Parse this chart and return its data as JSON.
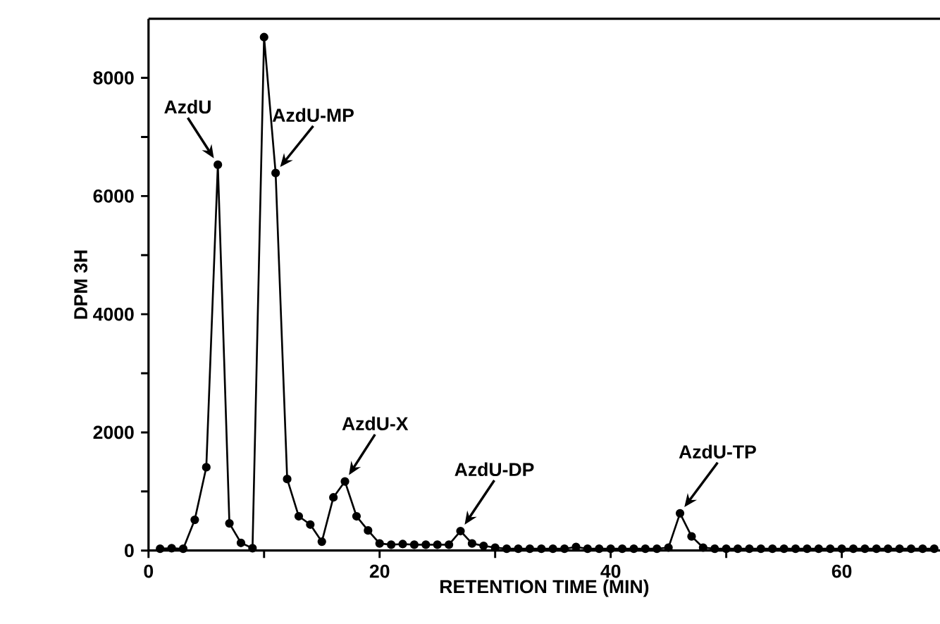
{
  "chart_data": {
    "type": "line",
    "xlabel": "RETENTION TIME (MIN)",
    "ylabel": "DPM 3H",
    "x": [
      1,
      2,
      3,
      4,
      5,
      6,
      7,
      8,
      9,
      10,
      11,
      12,
      13,
      14,
      15,
      16,
      17,
      18,
      19,
      20,
      21,
      22,
      23,
      24,
      25,
      26,
      27,
      28,
      29,
      30,
      31,
      32,
      33,
      34,
      35,
      36,
      37,
      38,
      39,
      40,
      41,
      42,
      43,
      44,
      45,
      46,
      47,
      48,
      49,
      50,
      51,
      52,
      53,
      54,
      55,
      56,
      57,
      58,
      59,
      60,
      61,
      62,
      63,
      64,
      65,
      66,
      67,
      68
    ],
    "series": [
      {
        "color": "#000000",
        "values": [
          30,
          40,
          30,
          520,
          1410,
          6530,
          460,
          130,
          40,
          8690,
          6390,
          1210,
          580,
          440,
          150,
          900,
          1170,
          580,
          340,
          120,
          100,
          110,
          100,
          100,
          100,
          100,
          330,
          120,
          80,
          50,
          30,
          30,
          30,
          30,
          30,
          30,
          60,
          30,
          30,
          30,
          30,
          30,
          30,
          30,
          50,
          630,
          240,
          50,
          30,
          30,
          30,
          30,
          30,
          30,
          30,
          30,
          30,
          30,
          30,
          30,
          30,
          30,
          30,
          30,
          30,
          30,
          30,
          30
        ]
      }
    ],
    "xlim": [
      0,
      68.5
    ],
    "ylim": [
      0,
      9000
    ],
    "xticks": [
      0,
      {
        "value": 10,
        "label": null
      },
      20,
      {
        "value": 30,
        "label": null
      },
      40,
      {
        "value": 50,
        "label": null
      },
      60
    ],
    "yticks": [
      0,
      {
        "value": 1000,
        "label": null
      },
      2000,
      {
        "value": 3000,
        "label": null
      },
      4000,
      {
        "value": 5000,
        "label": null
      },
      6000,
      {
        "value": 7000,
        "label": null
      },
      8000
    ],
    "marker": "circle",
    "line_style": "solid",
    "annotations": [
      {
        "text": "AzdU",
        "x": 6,
        "y": 6530
      },
      {
        "text": "AzdU-MP",
        "x": 11,
        "y": 6390
      },
      {
        "text": "AzdU-X",
        "x": 17,
        "y": 1170
      },
      {
        "text": "AzdU-DP",
        "x": 27,
        "y": 330
      },
      {
        "text": "AzdU-TP",
        "x": 46,
        "y": 630
      }
    ]
  }
}
